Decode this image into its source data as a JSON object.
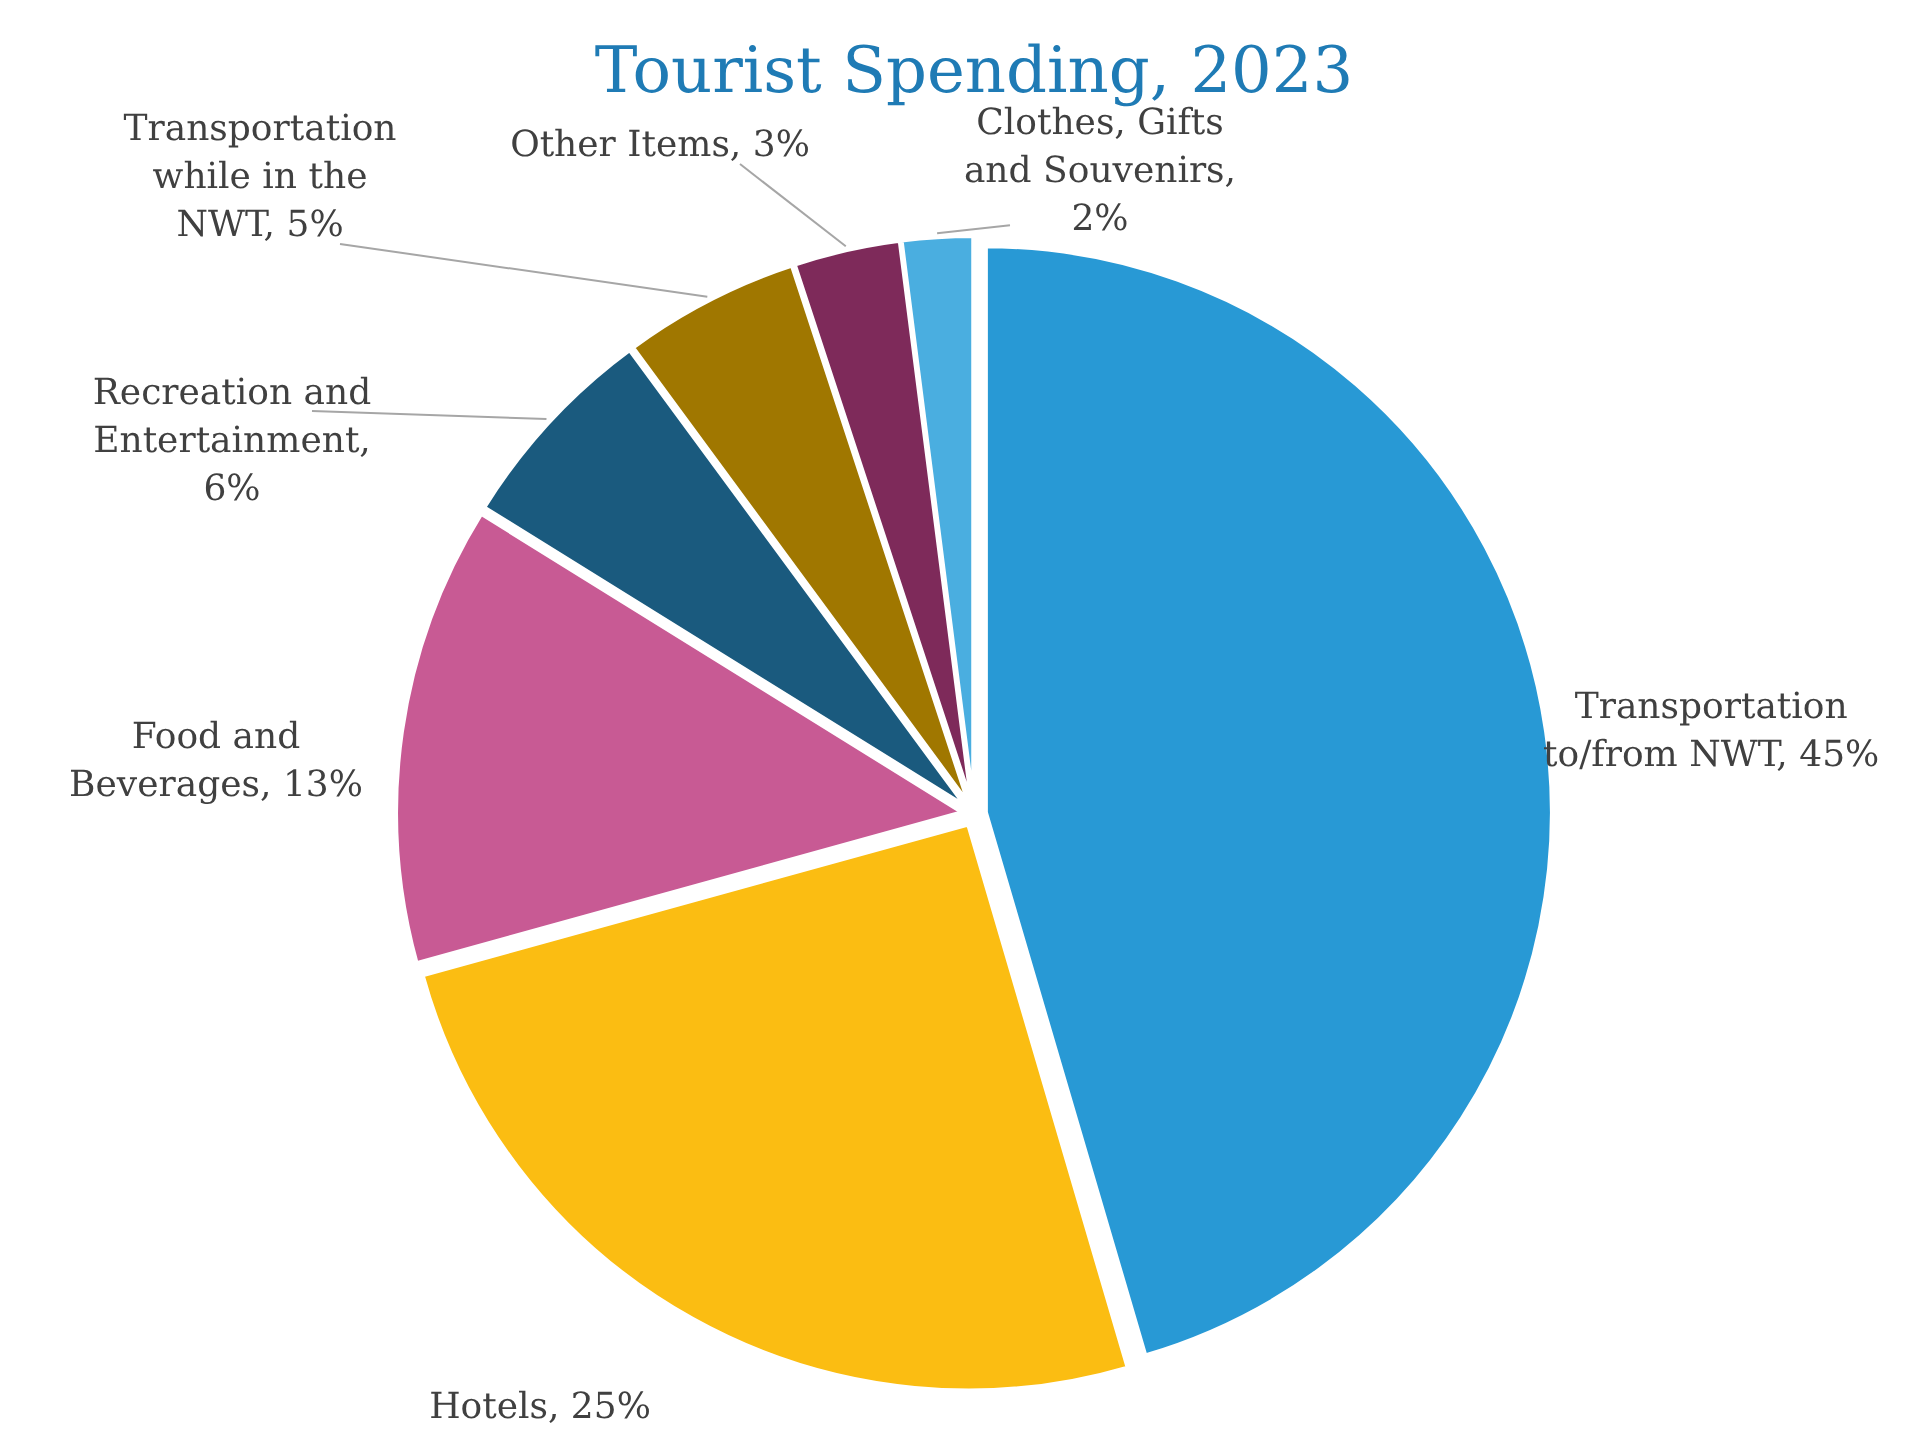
{
  "chart_data": {
    "type": "pie",
    "title": "Tourist Spending, 2023",
    "categories": [
      "Transportation to/from NWT, 45%",
      "Hotels, 25%",
      "Food and Beverages, 13%",
      "Recreation and Entertainment, 6%",
      "Transportation while in the NWT, 5%",
      "Other Items, 3%",
      "Clothes, Gifts and Souvenirs, 2%"
    ],
    "values": [
      45,
      25,
      13,
      6,
      5,
      3,
      2
    ],
    "colors": [
      "#2899d5",
      "#fbbd12",
      "#c85a94",
      "#1a5a7e",
      "#a07700",
      "#7e2a5a",
      "#4aaee0"
    ]
  }
}
